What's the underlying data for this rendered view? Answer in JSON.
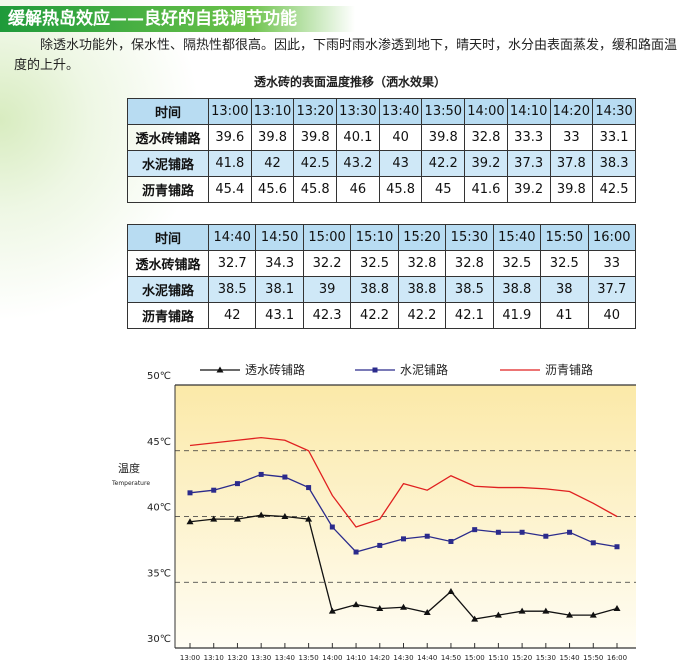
{
  "header": {
    "title": "缓解热岛效应——良好的自我调节功能"
  },
  "body": {
    "text": "除透水功能外，保水性、隔热性都很高。因此，下雨时雨水渗透到地下，晴天时，水分由表面蒸发，缓和路面温度的上升。"
  },
  "table_title": "透水砖的表面温度推移（洒水效果）",
  "tables": [
    {
      "columns": [
        "时间",
        "13:00",
        "13:10",
        "13:20",
        "13:30",
        "13:40",
        "13:50",
        "14:00",
        "14:10",
        "14:20",
        "14:30"
      ],
      "rows": [
        [
          "透水砖铺路",
          39.6,
          39.8,
          39.8,
          40.1,
          40,
          39.8,
          32.8,
          33.3,
          33,
          33.1
        ],
        [
          "水泥铺路",
          41.8,
          42,
          42.5,
          43.2,
          43,
          42.2,
          39.2,
          37.3,
          37.8,
          38.3
        ],
        [
          "沥青铺路",
          45.4,
          45.6,
          45.8,
          46,
          45.8,
          45,
          41.6,
          39.2,
          39.8,
          42.5
        ]
      ]
    },
    {
      "columns": [
        "时间",
        "14:40",
        "14:50",
        "15:00",
        "15:10",
        "15:20",
        "15:30",
        "15:40",
        "15:50",
        "16:00"
      ],
      "rows": [
        [
          "透水砖铺路",
          32.7,
          34.3,
          32.2,
          32.5,
          32.8,
          32.8,
          32.5,
          32.5,
          33
        ],
        [
          "水泥铺路",
          38.5,
          38.1,
          39,
          38.8,
          38.8,
          38.5,
          38.8,
          38,
          37.7
        ],
        [
          "沥青铺路",
          42,
          43.1,
          42.3,
          42.2,
          42.2,
          42.1,
          41.9,
          41,
          40
        ]
      ]
    }
  ],
  "chart_data": {
    "type": "line",
    "y_label": "温度",
    "y_label_en": "Temperature",
    "categories": [
      "13:00",
      "13:10",
      "13:20",
      "13:30",
      "13:40",
      "13:50",
      "14:00",
      "14:10",
      "14:20",
      "14:30",
      "14:40",
      "14:50",
      "15:00",
      "15:10",
      "15:20",
      "15:30",
      "15:40",
      "15:50",
      "16:00"
    ],
    "series": [
      {
        "name": "透水砖铺路",
        "color": "#111111",
        "marker": "triangle",
        "values": [
          39.6,
          39.8,
          39.8,
          40.1,
          40,
          39.8,
          32.8,
          33.3,
          33,
          33.1,
          32.7,
          34.3,
          32.2,
          32.5,
          32.8,
          32.8,
          32.5,
          32.5,
          33
        ]
      },
      {
        "name": "水泥铺路",
        "color": "#2b2b8c",
        "marker": "square",
        "values": [
          41.8,
          42,
          42.5,
          43.2,
          43,
          42.2,
          39.2,
          37.3,
          37.8,
          38.3,
          38.5,
          38.1,
          39,
          38.8,
          38.8,
          38.5,
          38.8,
          38,
          37.7
        ]
      },
      {
        "name": "沥青铺路",
        "color": "#e02020",
        "values": [
          45.4,
          45.6,
          45.8,
          46,
          45.8,
          45,
          41.6,
          39.2,
          39.8,
          42.5,
          42,
          43.1,
          42.3,
          42.2,
          42.2,
          42.1,
          41.9,
          41,
          40
        ]
      }
    ],
    "ylim": [
      30,
      50
    ],
    "yticks": [
      {
        "value": 30,
        "label": "30℃"
      },
      {
        "value": 35,
        "label": "35℃"
      },
      {
        "value": 40,
        "label": "40℃"
      },
      {
        "value": 45,
        "label": "45℃"
      },
      {
        "value": 50,
        "label": "50℃"
      }
    ],
    "grid": true
  }
}
